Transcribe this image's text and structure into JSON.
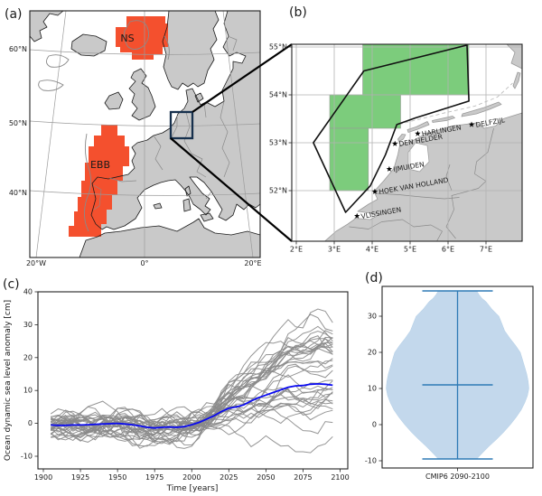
{
  "figure": {
    "type": "multi-panel climate figure"
  },
  "panels": {
    "a": {
      "label": "(a)",
      "regions": [
        {
          "name": "NS"
        },
        {
          "name": "EBB"
        }
      ],
      "x_tick_labels": [
        "20°W",
        "0°",
        "20°E"
      ],
      "y_tick_labels": [
        "60°N",
        "50°N",
        "40°N"
      ],
      "region_color": "#f4502e",
      "land_color": "#c9c9c9",
      "inset_box_color": "#16304d"
    },
    "b": {
      "label": "(b)",
      "x_tick_labels": [
        "2°E",
        "3°E",
        "4°E",
        "5°E",
        "6°E",
        "7°E"
      ],
      "y_tick_labels": [
        "55°N",
        "54°N",
        "53°N",
        "52°N"
      ],
      "grid_cell_color": "#7ccc7c",
      "stations": [
        {
          "name": "DELFZIJL",
          "lon": 6.62,
          "lat": 53.38
        },
        {
          "name": "HARLINGEN",
          "lon": 5.2,
          "lat": 53.19
        },
        {
          "name": "DEN HELDER",
          "lon": 4.6,
          "lat": 52.98
        },
        {
          "name": "IJMUIDEN",
          "lon": 4.45,
          "lat": 52.45
        },
        {
          "name": "HOEK VAN HOLLAND",
          "lon": 4.07,
          "lat": 51.98
        },
        {
          "name": "VLISSINGEN",
          "lon": 3.6,
          "lat": 51.47
        }
      ]
    },
    "c": {
      "label": "(c)"
    },
    "d": {
      "label": "(d)"
    }
  },
  "chart_data": [
    {
      "panel": "c",
      "type": "line",
      "xlabel": "Time [years]",
      "ylabel": "Ocean dynamic sea level anomaly [cm]",
      "x_ticks": [
        1900,
        1925,
        1950,
        1975,
        2000,
        2025,
        2050,
        2075,
        2100
      ],
      "y_ticks": [
        -10,
        0,
        10,
        20,
        30,
        40
      ],
      "xlim": [
        1896,
        2105
      ],
      "ylim": [
        -13.8,
        40.5
      ],
      "series": [
        {
          "name": "ensemble mean",
          "color": "#0a0af0",
          "x": [
            1905,
            1910,
            1915,
            1920,
            1925,
            1930,
            1935,
            1940,
            1945,
            1950,
            1955,
            1960,
            1965,
            1970,
            1975,
            1980,
            1985,
            1990,
            1995,
            2000,
            2005,
            2010,
            2015,
            2020,
            2025,
            2030,
            2035,
            2040,
            2045,
            2050,
            2055,
            2060,
            2065,
            2070,
            2075,
            2080,
            2085,
            2090,
            2095
          ],
          "y": [
            -0.5,
            -0.6,
            -0.6,
            -0.5,
            -0.5,
            -0.4,
            -0.3,
            -0.2,
            -0.1,
            0.0,
            -0.2,
            -0.4,
            -0.8,
            -1.2,
            -1.4,
            -1.2,
            -1.1,
            -1.2,
            -1.0,
            -0.4,
            0.3,
            1.3,
            2.3,
            3.6,
            4.6,
            5.0,
            5.6,
            6.8,
            7.8,
            8.6,
            9.4,
            10.2,
            11.0,
            11.4,
            11.5,
            11.9,
            12.0,
            11.9,
            11.6
          ]
        }
      ],
      "ensemble": {
        "name": "CMIP6 members",
        "color": "#8a8a8a",
        "n_members": 36,
        "x_start": 1905,
        "x_end": 2095,
        "historical_range": [
          -8,
          7
        ],
        "end_range": [
          -9.5,
          37
        ]
      }
    },
    {
      "panel": "d",
      "type": "violin",
      "categories": [
        "CMIP6 2090-2100"
      ],
      "y_ticks": [
        -10,
        0,
        10,
        20,
        30
      ],
      "stats": {
        "min": -9.5,
        "median": 11,
        "max": 37
      },
      "fill_color": "#c3d8ec",
      "line_color": "#2e7ab5",
      "profile": [
        [
          -9.5,
          0.27
        ],
        [
          -8,
          0.34
        ],
        [
          -6,
          0.44
        ],
        [
          -4,
          0.55
        ],
        [
          -2,
          0.65
        ],
        [
          0,
          0.74
        ],
        [
          2,
          0.82
        ],
        [
          4,
          0.89
        ],
        [
          6,
          0.94
        ],
        [
          8,
          0.98
        ],
        [
          10,
          1.0
        ],
        [
          12,
          0.99
        ],
        [
          14,
          0.97
        ],
        [
          16,
          0.94
        ],
        [
          18,
          0.91
        ],
        [
          20,
          0.88
        ],
        [
          22,
          0.81
        ],
        [
          24,
          0.73
        ],
        [
          26,
          0.66
        ],
        [
          28,
          0.62
        ],
        [
          30,
          0.58
        ],
        [
          32,
          0.48
        ],
        [
          34,
          0.4
        ],
        [
          35,
          0.34
        ],
        [
          36,
          0.3
        ],
        [
          37,
          0.27
        ]
      ]
    }
  ]
}
